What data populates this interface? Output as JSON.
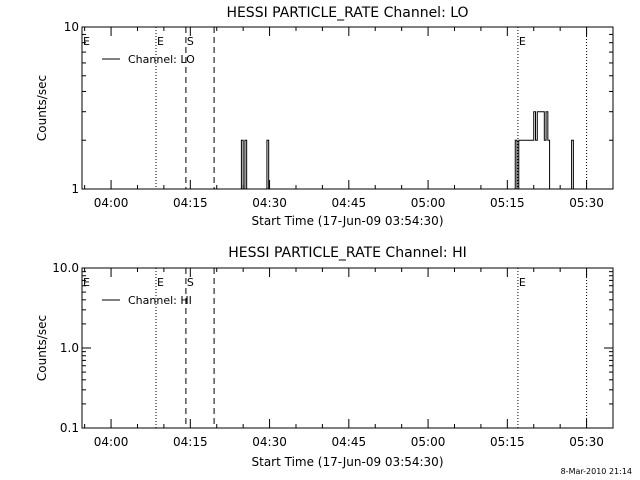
{
  "footer": {
    "timestamp": "8-Mar-2010 21:14"
  },
  "chart_data": [
    {
      "type": "line",
      "title": "HESSI PARTICLE_RATE Channel: LO",
      "xlabel": "Start Time (17-Jun-09 03:54:30)",
      "ylabel": "Counts/sec",
      "yscale": "log",
      "xlim": [
        "03:54:30",
        "05:35:00"
      ],
      "ylim": [
        1,
        10
      ],
      "xticks": [
        "04:00",
        "04:15",
        "04:30",
        "04:45",
        "05:00",
        "05:15",
        "05:30"
      ],
      "yticks": [
        "1",
        "10"
      ],
      "legend": "top-left",
      "series": [
        {
          "name": "Channel: LO",
          "color": "#000000",
          "style": "step",
          "points": [
            [
              "04:24:40",
              1
            ],
            [
              "04:24:40",
              2
            ],
            [
              "04:25:00",
              2
            ],
            [
              "04:25:00",
              1
            ],
            [
              "04:25:20",
              1
            ],
            [
              "04:25:20",
              2
            ],
            [
              "04:25:40",
              2
            ],
            [
              "04:25:40",
              1
            ],
            [
              "04:29:30",
              1
            ],
            [
              "04:29:30",
              2
            ],
            [
              "04:29:50",
              2
            ],
            [
              "04:29:50",
              1
            ],
            [
              "05:16:30",
              1
            ],
            [
              "05:16:30",
              2
            ],
            [
              "05:16:50",
              2
            ],
            [
              "05:16:50",
              1
            ],
            [
              "05:17:10",
              1
            ],
            [
              "05:17:10",
              2
            ],
            [
              "05:20:00",
              2
            ],
            [
              "05:20:00",
              3
            ],
            [
              "05:20:20",
              3
            ],
            [
              "05:20:20",
              2
            ],
            [
              "05:20:40",
              2
            ],
            [
              "05:20:40",
              3
            ],
            [
              "05:22:00",
              3
            ],
            [
              "05:22:00",
              2
            ],
            [
              "05:22:20",
              2
            ],
            [
              "05:22:20",
              3
            ],
            [
              "05:22:40",
              3
            ],
            [
              "05:22:40",
              2
            ],
            [
              "05:23:00",
              2
            ],
            [
              "05:23:00",
              1
            ],
            [
              "05:27:10",
              1
            ],
            [
              "05:27:10",
              2
            ],
            [
              "05:27:30",
              2
            ],
            [
              "05:27:30",
              1
            ]
          ]
        }
      ],
      "markers": [
        {
          "time": "04:08:30",
          "style": "dotted",
          "label": "E"
        },
        {
          "time": "04:14:10",
          "style": "dashed",
          "label": "S"
        },
        {
          "time": "04:19:30",
          "style": "dashed",
          "label": ""
        },
        {
          "time": "05:17:00",
          "style": "dotted",
          "label": "E"
        },
        {
          "time": "05:30:00",
          "style": "dotted",
          "label": ""
        }
      ],
      "edge_label": "E"
    },
    {
      "type": "line",
      "title": "HESSI PARTICLE_RATE Channel: HI",
      "xlabel": "Start Time (17-Jun-09 03:54:30)",
      "ylabel": "Counts/sec",
      "yscale": "log",
      "xlim": [
        "03:54:30",
        "05:35:00"
      ],
      "ylim": [
        0.1,
        10
      ],
      "xticks": [
        "04:00",
        "04:15",
        "04:30",
        "04:45",
        "05:00",
        "05:15",
        "05:30"
      ],
      "yticks": [
        "0.1",
        "1.0",
        "10.0"
      ],
      "legend": "top-left",
      "series": [
        {
          "name": "Channel: HI",
          "color": "#000000",
          "style": "step",
          "points": []
        }
      ],
      "markers": [
        {
          "time": "04:08:30",
          "style": "dotted",
          "label": "E"
        },
        {
          "time": "04:14:10",
          "style": "dashed",
          "label": "S"
        },
        {
          "time": "04:19:30",
          "style": "dashed",
          "label": ""
        },
        {
          "time": "05:17:00",
          "style": "dotted",
          "label": "E"
        },
        {
          "time": "05:30:00",
          "style": "dotted",
          "label": ""
        }
      ],
      "edge_label": "E"
    }
  ]
}
